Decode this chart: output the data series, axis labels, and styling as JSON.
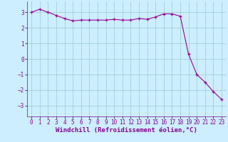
{
  "x": [
    0,
    1,
    2,
    3,
    4,
    5,
    6,
    7,
    8,
    9,
    10,
    11,
    12,
    13,
    14,
    15,
    16,
    17,
    18,
    19,
    20,
    21,
    22,
    23
  ],
  "y": [
    3.0,
    3.2,
    3.0,
    2.8,
    2.6,
    2.45,
    2.5,
    2.5,
    2.5,
    2.5,
    2.55,
    2.5,
    2.5,
    2.6,
    2.55,
    2.7,
    2.9,
    2.9,
    2.75,
    0.3,
    -1.0,
    -1.5,
    -2.1,
    -2.6
  ],
  "line_color": "#990099",
  "marker": "+",
  "markersize": 3.5,
  "linewidth": 0.8,
  "background_color": "#cceeff",
  "grid_color": "#99cccc",
  "xlabel": "Windchill (Refroidissement éolien,°C)",
  "xlabel_color": "#880088",
  "xlabel_fontsize": 6.5,
  "tick_color": "#880088",
  "tick_fontsize": 5.5,
  "yticks": [
    -3,
    -2,
    -1,
    0,
    1,
    2,
    3
  ],
  "ylim": [
    -3.7,
    3.7
  ],
  "xlim": [
    -0.5,
    23.5
  ]
}
